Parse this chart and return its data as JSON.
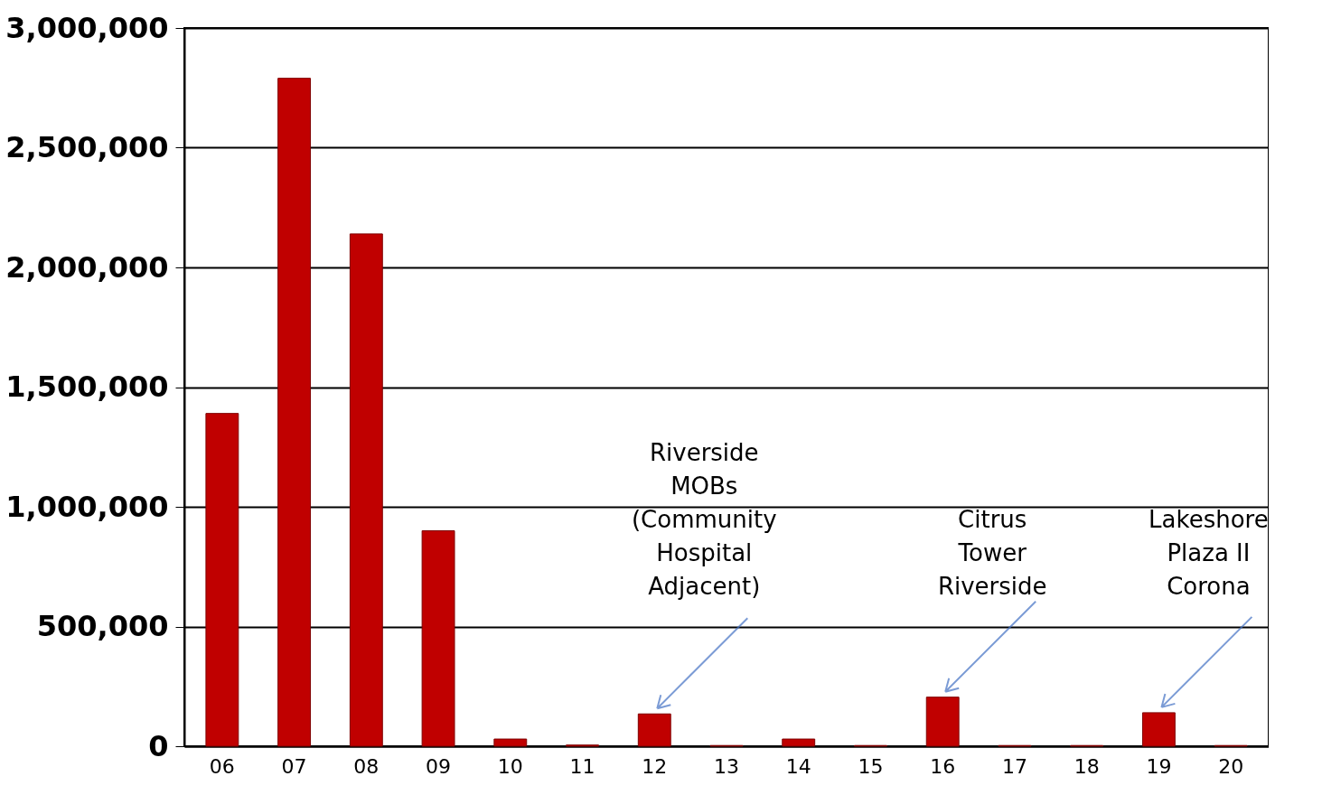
{
  "chart_data": {
    "type": "bar",
    "categories": [
      "06",
      "07",
      "08",
      "09",
      "10",
      "11",
      "12",
      "13",
      "14",
      "15",
      "16",
      "17",
      "18",
      "19",
      "20"
    ],
    "values": [
      1390000,
      2790000,
      2140000,
      900000,
      30000,
      5000,
      135000,
      3000,
      30000,
      3000,
      205000,
      3000,
      3000,
      140000,
      3000
    ],
    "color": "#c00000",
    "ylim": [
      0,
      3000000
    ],
    "yticks": [
      {
        "value": 0,
        "label": "0"
      },
      {
        "value": 500000,
        "label": "500,000"
      },
      {
        "value": 1000000,
        "label": "1,000,000"
      },
      {
        "value": 1500000,
        "label": "1,500,000"
      },
      {
        "value": 2000000,
        "label": "2,000,000"
      },
      {
        "value": 2500000,
        "label": "2,500,000"
      },
      {
        "value": 3000000,
        "label": "3,000,000"
      }
    ],
    "grid": "y",
    "annotations": [
      {
        "text": "Riverside\nMOBs\n(Community\nHospital\nAdjacent)",
        "x": "12",
        "y": 135000
      },
      {
        "text": "Citrus\nTower\nRiverside",
        "x": "16",
        "y": 205000
      },
      {
        "text": "Lakeshore\nPlaza II\nCorona",
        "x": "19",
        "y": 140000
      }
    ]
  }
}
